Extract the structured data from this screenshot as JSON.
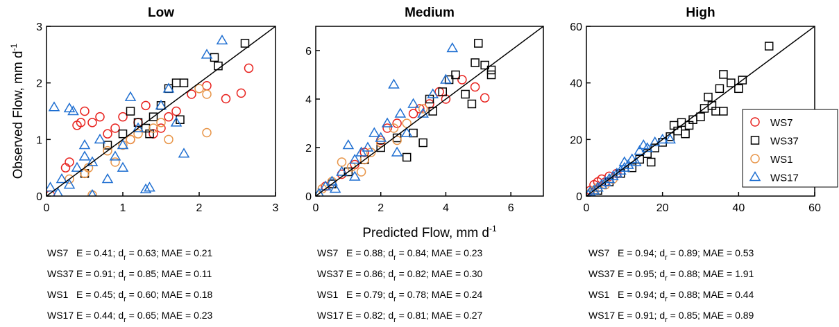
{
  "chart_data": [
    {
      "type": "scatter",
      "title": "Low",
      "y_label": {
        "text": "Observed Flow, mm d",
        "sup": "-1"
      },
      "xlim": [
        0,
        3
      ],
      "ylim": [
        0,
        3
      ],
      "xticks": [
        0,
        1,
        2,
        3
      ],
      "yticks": [
        0,
        1,
        2,
        3
      ],
      "series": [
        {
          "name": "WS7",
          "color": "#e8231f",
          "marker": "circle",
          "x": [
            0.05,
            0.3,
            0.4,
            0.5,
            0.6,
            0.7,
            0.8,
            0.9,
            1.0,
            1.1,
            1.2,
            1.3,
            1.5,
            1.6,
            1.9,
            2.1,
            2.35,
            2.55,
            2.65,
            0.45,
            0.25,
            1.4,
            1.7
          ],
          "values": [
            0.02,
            0.6,
            1.25,
            1.5,
            1.3,
            1.4,
            1.1,
            1.2,
            1.4,
            1.0,
            1.3,
            1.6,
            1.2,
            1.4,
            1.8,
            1.95,
            1.72,
            1.82,
            2.26,
            1.3,
            0.5,
            1.1,
            1.5
          ]
        },
        {
          "name": "WS37",
          "color": "#000000",
          "marker": "square",
          "x": [
            0.5,
            0.8,
            1.0,
            1.2,
            1.3,
            1.4,
            1.5,
            1.6,
            1.7,
            1.8,
            2.2,
            2.25,
            2.6,
            1.1,
            1.35,
            1.75
          ],
          "values": [
            0.4,
            0.9,
            1.1,
            1.3,
            1.2,
            1.4,
            1.6,
            1.9,
            2.0,
            2.0,
            2.45,
            2.3,
            2.7,
            1.5,
            1.1,
            1.35
          ]
        },
        {
          "name": "WS1",
          "color": "#e8964a",
          "marker": "circle",
          "x": [
            0.3,
            0.5,
            0.6,
            0.8,
            1.0,
            1.1,
            1.2,
            1.4,
            1.5,
            1.6,
            2.0,
            2.1,
            2.1,
            0.9,
            0.55
          ],
          "values": [
            0.3,
            0.4,
            0.02,
            0.8,
            0.9,
            1.0,
            1.1,
            1.2,
            1.3,
            1.0,
            1.9,
            1.8,
            1.12,
            0.6,
            0.5
          ]
        },
        {
          "name": "WS17",
          "color": "#1f6fd1",
          "marker": "triangle",
          "x": [
            0.05,
            0.1,
            0.2,
            0.3,
            0.35,
            0.4,
            0.5,
            0.6,
            0.7,
            0.8,
            0.9,
            1.0,
            1.1,
            1.2,
            1.3,
            1.5,
            1.6,
            1.8,
            2.1,
            2.3,
            1.35,
            1.7,
            0.6,
            0.3,
            0.15,
            1.0,
            0.5
          ],
          "values": [
            0.15,
            1.57,
            0.3,
            1.55,
            1.5,
            0.5,
            0.9,
            0.6,
            1.0,
            0.3,
            0.7,
            0.9,
            1.75,
            1.2,
            0.12,
            1.6,
            1.9,
            0.75,
            2.5,
            2.75,
            0.15,
            1.3,
            0.02,
            0.2,
            0.05,
            0.5,
            0.7
          ]
        }
      ],
      "stats": [
        {
          "site": "WS7",
          "E": "0.41",
          "dr": "0.63",
          "MAE": "0.21"
        },
        {
          "site": "WS37",
          "E": "0.91",
          "dr": "0.85",
          "MAE": "0.11"
        },
        {
          "site": "WS1",
          "E": "0.45",
          "dr": "0.60",
          "MAE": "0.18"
        },
        {
          "site": "WS17",
          "E": "0.44",
          "dr": "0.65",
          "MAE": "0.23"
        }
      ]
    },
    {
      "type": "scatter",
      "title": "Medium",
      "x_label": {
        "text": "Predicted Flow, mm d",
        "sup": "-1"
      },
      "xlim": [
        0,
        7
      ],
      "ylim": [
        0,
        7
      ],
      "xticks": [
        0,
        2,
        4,
        6
      ],
      "yticks": [
        0,
        2,
        4,
        6
      ],
      "series": [
        {
          "name": "WS7",
          "color": "#e8231f",
          "marker": "circle",
          "x": [
            0.3,
            0.8,
            1.2,
            1.5,
            2.0,
            2.5,
            3.0,
            3.5,
            3.8,
            4.0,
            4.5,
            4.9,
            5.2,
            2.2,
            3.2
          ],
          "values": [
            0.4,
            0.9,
            1.3,
            1.8,
            2.3,
            3.0,
            3.4,
            3.8,
            4.3,
            4.0,
            4.8,
            4.5,
            4.05,
            2.8,
            3.6
          ]
        },
        {
          "name": "WS37",
          "color": "#000000",
          "marker": "square",
          "x": [
            0.5,
            1.0,
            1.5,
            2.0,
            2.5,
            3.0,
            3.3,
            3.6,
            3.9,
            4.1,
            4.3,
            4.6,
            4.9,
            5.0,
            5.2,
            5.4,
            5.4,
            4.8,
            3.5,
            2.8
          ],
          "values": [
            0.5,
            1.0,
            1.5,
            2.0,
            2.4,
            2.6,
            2.2,
            3.5,
            4.3,
            4.8,
            5.0,
            4.2,
            5.5,
            6.3,
            5.4,
            5.2,
            5.0,
            3.8,
            4.0,
            1.6
          ]
        },
        {
          "name": "WS1",
          "color": "#e8964a",
          "marker": "circle",
          "x": [
            0.2,
            0.5,
            0.8,
            1.1,
            1.4,
            1.7,
            2.0,
            2.4,
            2.8,
            3.3,
            2.5,
            1.5
          ],
          "values": [
            0.3,
            0.6,
            1.4,
            1.2,
            1.0,
            1.8,
            2.2,
            2.8,
            3.0,
            3.6,
            2.3,
            1.5
          ]
        },
        {
          "name": "WS17",
          "color": "#1f6fd1",
          "marker": "triangle",
          "x": [
            0.1,
            0.3,
            0.5,
            0.8,
            1.0,
            1.2,
            1.4,
            1.6,
            1.8,
            2.0,
            2.2,
            2.4,
            2.6,
            2.8,
            3.0,
            3.3,
            3.6,
            4.0,
            4.2,
            2.5,
            1.2,
            0.6
          ],
          "values": [
            0.1,
            0.4,
            0.6,
            1.0,
            2.1,
            1.5,
            1.8,
            2.0,
            2.6,
            2.4,
            3.0,
            4.6,
            3.4,
            2.6,
            3.8,
            3.4,
            4.2,
            4.8,
            6.1,
            1.8,
            0.8,
            0.3
          ]
        }
      ],
      "stats": [
        {
          "site": "WS7",
          "E": "0.88",
          "dr": "0.84",
          "MAE": "0.23"
        },
        {
          "site": "WS37",
          "E": "0.86",
          "dr": "0.82",
          "MAE": "0.30"
        },
        {
          "site": "WS1",
          "E": "0.79",
          "dr": "0.78",
          "MAE": "0.24"
        },
        {
          "site": "WS17",
          "E": "0.82",
          "dr": "0.81",
          "MAE": "0.27"
        }
      ]
    },
    {
      "type": "scatter",
      "title": "High",
      "legend": "right",
      "xlim": [
        0,
        60
      ],
      "ylim": [
        0,
        60
      ],
      "xticks": [
        0,
        20,
        40,
        60
      ],
      "yticks": [
        0,
        20,
        40,
        60
      ],
      "series": [
        {
          "name": "WS7",
          "color": "#e8231f",
          "marker": "circle",
          "x": [
            1,
            2,
            3,
            4,
            5,
            6,
            8
          ],
          "values": [
            2,
            4,
            5,
            6,
            5,
            7,
            8
          ]
        },
        {
          "name": "WS37",
          "color": "#000000",
          "marker": "square",
          "x": [
            3,
            6,
            9,
            12,
            14,
            16,
            18,
            20,
            22,
            24,
            25,
            26,
            28,
            30,
            31,
            32,
            33,
            34,
            35,
            36,
            36,
            38,
            40,
            41,
            48,
            27,
            23,
            17
          ],
          "values": [
            2,
            5,
            8,
            10,
            13,
            15,
            17,
            19,
            21,
            23,
            26,
            22,
            27,
            28,
            31,
            35,
            32,
            30,
            38,
            43,
            30,
            40,
            38,
            41,
            53,
            25,
            25,
            12
          ]
        },
        {
          "name": "WS1",
          "color": "#e8964a",
          "marker": "circle",
          "x": [
            1,
            2,
            3,
            5,
            7
          ],
          "values": [
            1,
            2,
            3,
            4,
            6
          ]
        },
        {
          "name": "WS17",
          "color": "#1f6fd1",
          "marker": "triangle",
          "x": [
            0.5,
            1,
            2,
            3,
            4,
            5,
            6,
            7,
            8,
            9,
            10,
            11,
            12,
            13,
            14,
            16,
            18,
            20,
            22,
            15,
            10,
            6
          ],
          "values": [
            0.5,
            1.5,
            2,
            3,
            4,
            5,
            6,
            7,
            8,
            9,
            10,
            11,
            13,
            12,
            16,
            17,
            19,
            20,
            20,
            18,
            12,
            6
          ]
        }
      ],
      "stats": [
        {
          "site": "WS7",
          "E": "0.94",
          "dr": "0.89",
          "MAE": "0.53"
        },
        {
          "site": "WS37",
          "E": "0.95",
          "dr": "0.88",
          "MAE": "1.91"
        },
        {
          "site": "WS1",
          "E": "0.94",
          "dr": "0.88",
          "MAE": "0.44"
        },
        {
          "site": "WS17",
          "E": "0.91",
          "dr": "0.85",
          "MAE": "0.89"
        }
      ]
    }
  ],
  "stat_format": {
    "E": "E = ",
    "d": "; d",
    "r": "r",
    "eq": " = ",
    "MAE": "; MAE = "
  }
}
